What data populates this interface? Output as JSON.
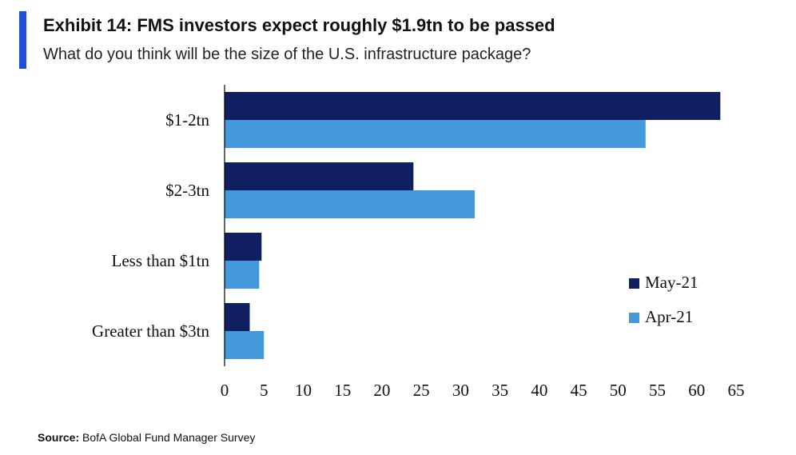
{
  "header": {
    "title": "Exhibit 14: FMS investors expect roughly $1.9tn to be passed",
    "subtitle": "What do you think will be the size of the U.S. infrastructure package?"
  },
  "footer": {
    "source_label": "Source:",
    "source_text": "BofA Global Fund Manager Survey"
  },
  "colors": {
    "accent": "#1f4ed8",
    "may": "#0f1f5f",
    "apr": "#4499dd"
  },
  "chart_data": {
    "type": "bar",
    "orientation": "horizontal",
    "categories": [
      "$1-2tn",
      "$2-3tn",
      "Less than $1tn",
      "Greater than $3tn"
    ],
    "series": [
      {
        "name": "May-21",
        "values": [
          63,
          24,
          4.7,
          3.2
        ],
        "color": "#0f1f5f"
      },
      {
        "name": "Apr-21",
        "values": [
          53.5,
          31.8,
          4.4,
          5
        ],
        "color": "#4499dd"
      }
    ],
    "xlim": [
      0,
      65
    ],
    "xticks": [
      "0",
      "5",
      "10",
      "15",
      "20",
      "25",
      "30",
      "35",
      "40",
      "45",
      "50",
      "55",
      "60",
      "65"
    ],
    "grid": false,
    "legend_position": "right"
  }
}
